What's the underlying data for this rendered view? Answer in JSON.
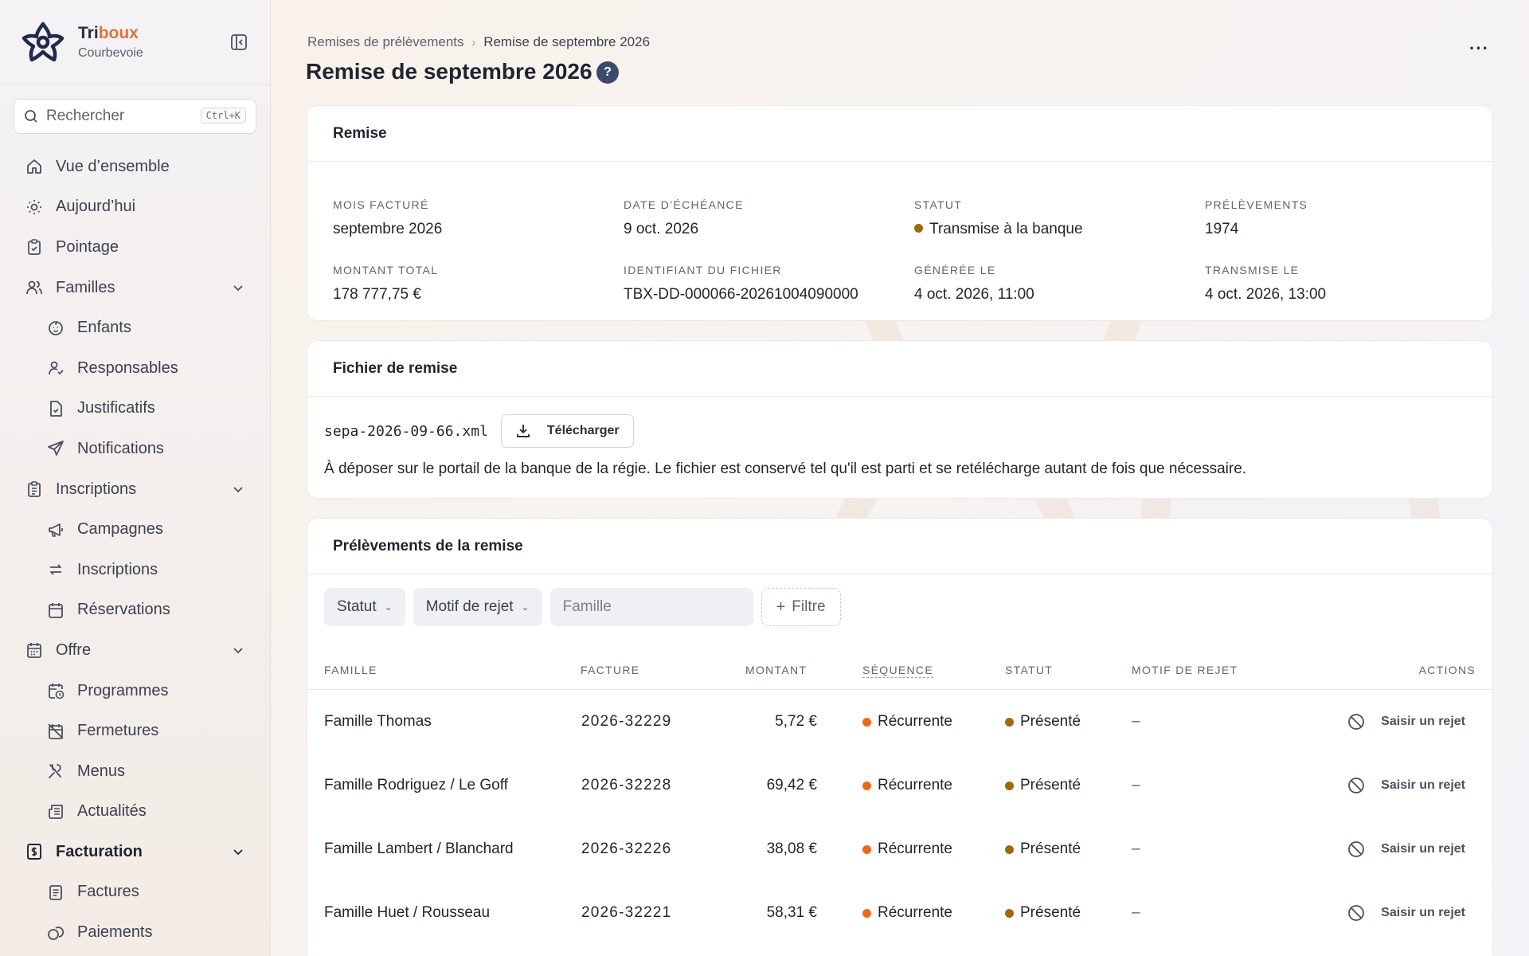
{
  "brand": {
    "name_part1": "Tri",
    "name_part2": "boux",
    "city": "Courbevoie"
  },
  "search": {
    "label": "Rechercher",
    "shortcut": "Ctrl+K"
  },
  "sidebar": {
    "items": [
      {
        "label": "Vue d’ensemble",
        "icon": "home-icon"
      },
      {
        "label": "Aujourd’hui",
        "icon": "sun-icon"
      },
      {
        "label": "Pointage",
        "icon": "clipboard-check-icon"
      },
      {
        "label": "Familles",
        "icon": "users-icon"
      },
      {
        "label": "Enfants",
        "icon": "baby-icon"
      },
      {
        "label": "Responsables",
        "icon": "user-check-icon"
      },
      {
        "label": "Justificatifs",
        "icon": "file-check-icon"
      },
      {
        "label": "Notifications",
        "icon": "send-icon"
      },
      {
        "label": "Inscriptions",
        "icon": "clipboard-list-icon"
      },
      {
        "label": "Campagnes",
        "icon": "megaphone-icon"
      },
      {
        "label": "Inscriptions",
        "icon": "repeat-icon"
      },
      {
        "label": "Réservations",
        "icon": "calendar-icon"
      },
      {
        "label": "Offre",
        "icon": "calendar-grid-icon"
      },
      {
        "label": "Programmes",
        "icon": "calendar-clock-icon"
      },
      {
        "label": "Fermetures",
        "icon": "calendar-off-icon"
      },
      {
        "label": "Menus",
        "icon": "utensils-icon"
      },
      {
        "label": "Actualités",
        "icon": "newspaper-icon"
      },
      {
        "label": "Facturation",
        "icon": "receipt-icon"
      },
      {
        "label": "Factures",
        "icon": "file-icon"
      },
      {
        "label": "Paiements",
        "icon": "coins-icon"
      }
    ]
  },
  "breadcrumb": {
    "parent": "Remises de prélèvements",
    "current": "Remise de septembre 2026"
  },
  "page": {
    "title": "Remise de septembre 2026",
    "help": "?",
    "more": "···"
  },
  "remise": {
    "title": "Remise",
    "fields": {
      "mois_label": "MOIS FACTURÉ",
      "mois_value": "septembre 2026",
      "echeance_label": "DATE D’ÉCHÉANCE",
      "echeance_value": "9 oct. 2026",
      "statut_label": "STATUT",
      "statut_value": "Transmise à la banque",
      "prelevements_label": "PRÉLÈVEMENTS",
      "prelevements_value": "1974",
      "montant_label": "MONTANT TOTAL",
      "montant_value": "178 777,75 €",
      "fichier_label": "IDENTIFIANT DU FICHIER",
      "fichier_value": "TBX-DD-000066-20261004090000",
      "generee_label": "GÉNÉRÉE LE",
      "generee_value": "4 oct. 2026, 11:00",
      "transmise_label": "TRANSMISE LE",
      "transmise_value": "4 oct. 2026, 13:00"
    },
    "status_color": "#9a6a0e"
  },
  "fichier": {
    "title": "Fichier de remise",
    "filename": "sepa-2026-09-66.xml",
    "download_label": "Télécharger",
    "description": "À déposer sur le portail de la banque de la régie. Le fichier est conservé tel qu'il est parti et se retélécharge autant de fois que nécessaire."
  },
  "prelevements": {
    "title": "Prélèvements de la remise",
    "filters": {
      "statut": "Statut",
      "motif": "Motif de rejet",
      "famille_placeholder": "Famille",
      "add": "Filtre"
    },
    "columns": {
      "famille": "FAMILLE",
      "facture": "FACTURE",
      "montant": "MONTANT",
      "sequence": "SÉQUENCE",
      "statut": "STATUT",
      "motif": "MOTIF DE REJET",
      "actions": "ACTIONS"
    },
    "sequence_color": "#ea6a17",
    "statut_color": "#9a6a0e",
    "rows": [
      {
        "famille": "Famille Thomas",
        "facture": "2026-32229",
        "montant": "5,72 €",
        "sequence": "Récurrente",
        "statut": "Présenté",
        "motif": "–",
        "action": "Saisir un rejet"
      },
      {
        "famille": "Famille Rodriguez / Le Goff",
        "facture": "2026-32228",
        "montant": "69,42 €",
        "sequence": "Récurrente",
        "statut": "Présenté",
        "motif": "–",
        "action": "Saisir un rejet"
      },
      {
        "famille": "Famille Lambert / Blanchard",
        "facture": "2026-32226",
        "montant": "38,08 €",
        "sequence": "Récurrente",
        "statut": "Présenté",
        "motif": "–",
        "action": "Saisir un rejet"
      },
      {
        "famille": "Famille Huet / Rousseau",
        "facture": "2026-32221",
        "montant": "58,31 €",
        "sequence": "Récurrente",
        "statut": "Présenté",
        "motif": "–",
        "action": "Saisir un rejet"
      }
    ]
  }
}
